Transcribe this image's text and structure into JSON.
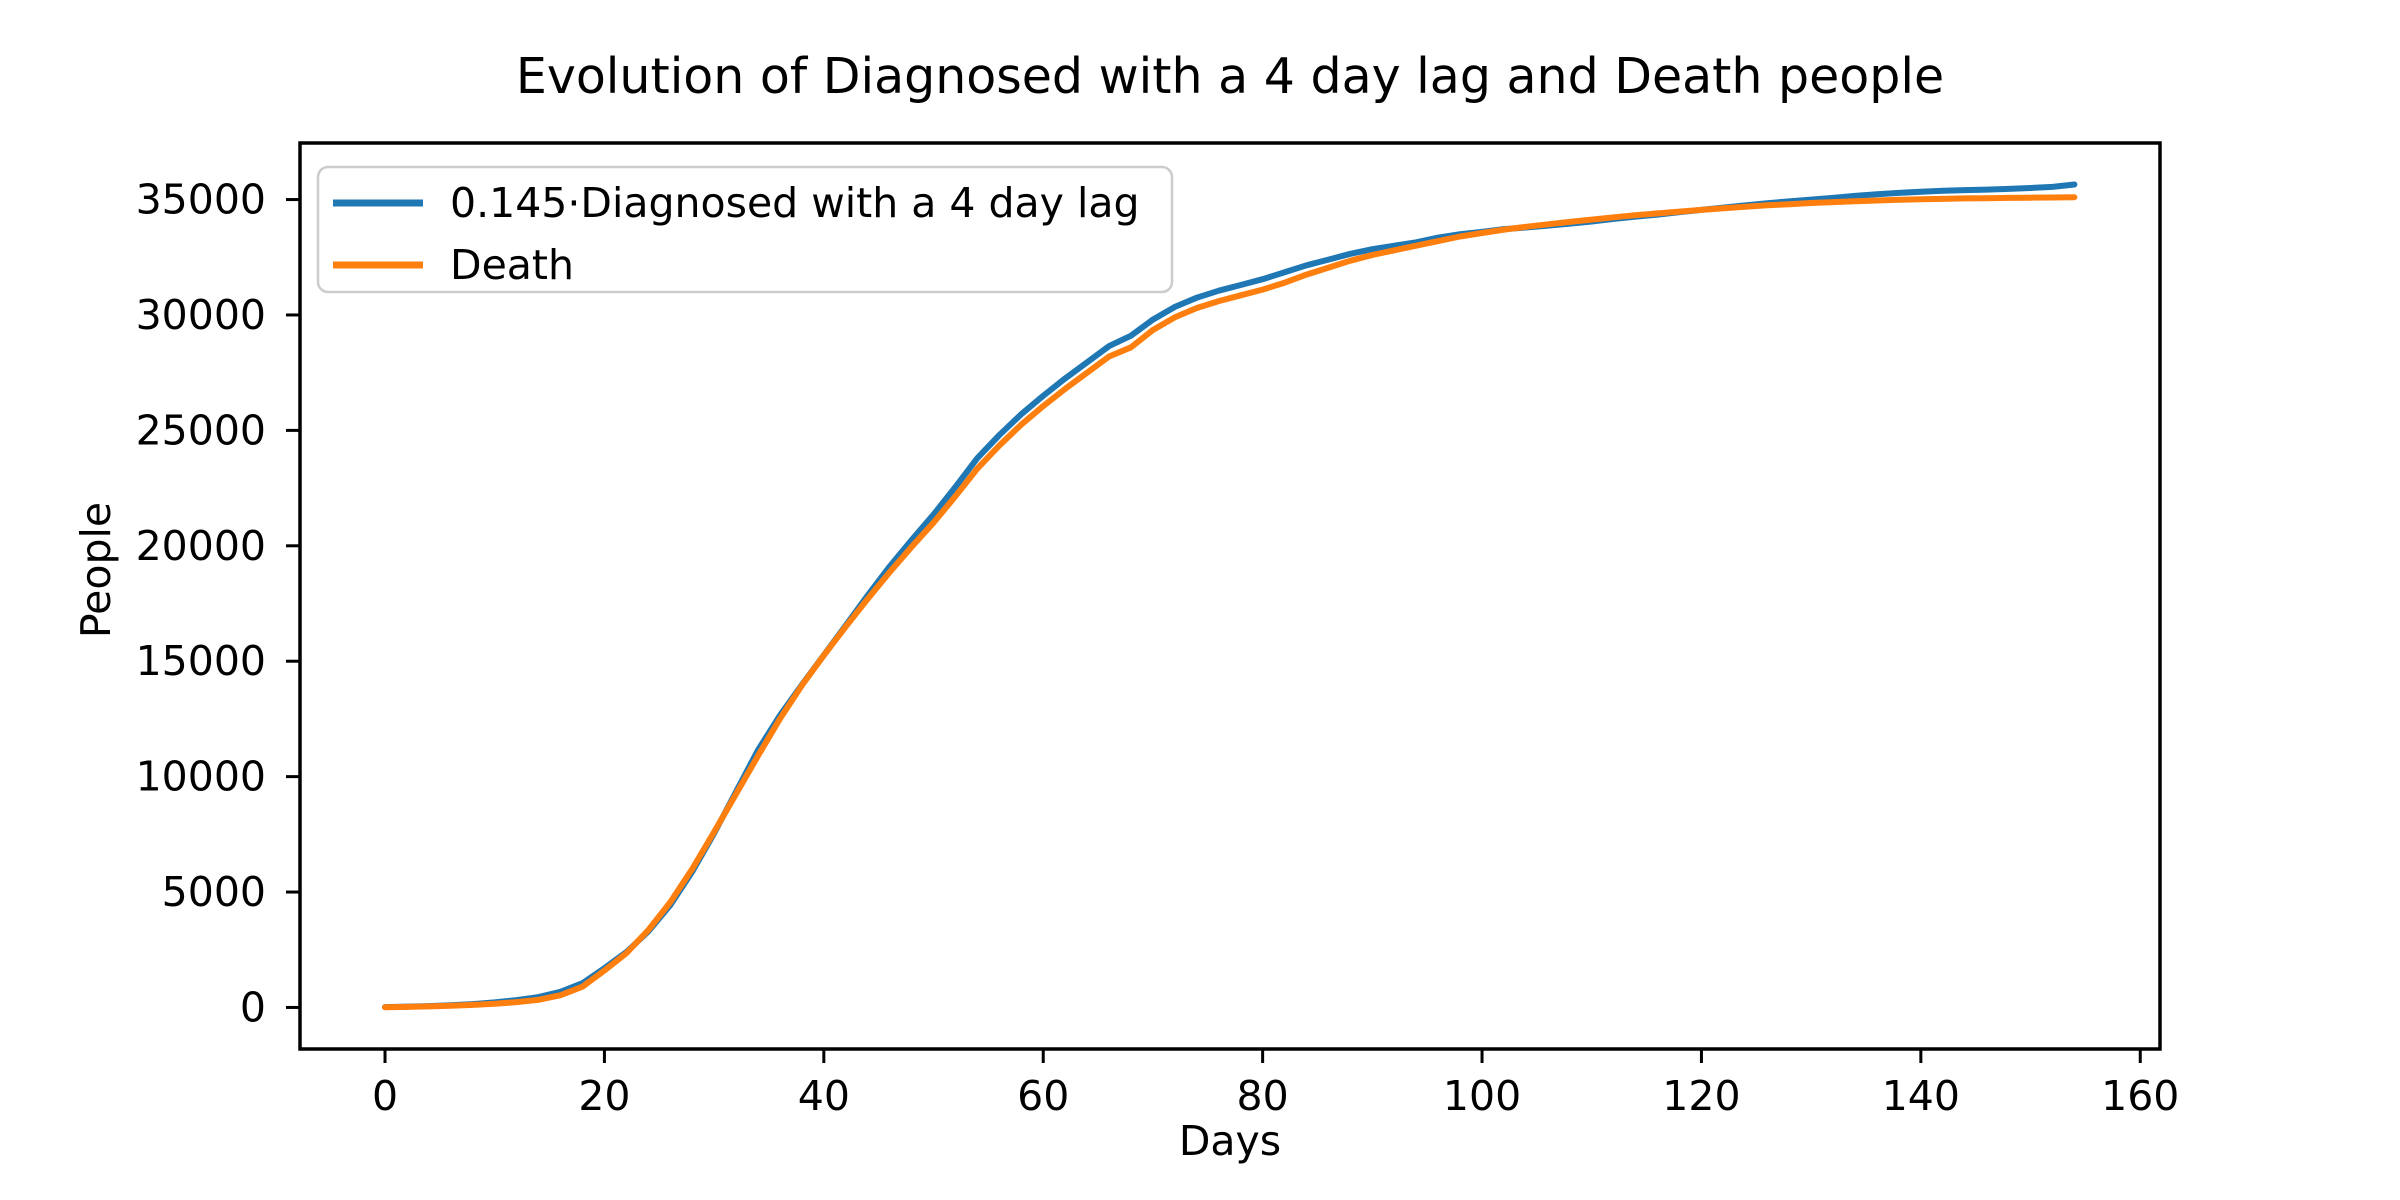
{
  "chart_data": {
    "type": "line",
    "title": "Evolution of Diagnosed with a 4 day lag and Death people",
    "xlabel": "Days",
    "ylabel": "People",
    "grid": false,
    "legend_position": "upper left",
    "xlim": [
      -7.75,
      161.8
    ],
    "ylim": [
      -1800,
      37450
    ],
    "xticks": [
      0,
      20,
      40,
      60,
      80,
      100,
      120,
      140,
      160
    ],
    "yticks": [
      0,
      5000,
      10000,
      15000,
      20000,
      25000,
      30000,
      35000
    ],
    "x": [
      0,
      2,
      4,
      6,
      8,
      10,
      12,
      14,
      16,
      18,
      20,
      22,
      24,
      26,
      28,
      30,
      32,
      34,
      36,
      38,
      40,
      42,
      44,
      46,
      48,
      50,
      52,
      54,
      56,
      58,
      60,
      62,
      64,
      66,
      68,
      70,
      72,
      74,
      76,
      78,
      80,
      82,
      84,
      86,
      88,
      90,
      92,
      94,
      96,
      98,
      100,
      102,
      104,
      106,
      108,
      110,
      112,
      114,
      116,
      118,
      120,
      122,
      124,
      126,
      128,
      130,
      132,
      134,
      136,
      138,
      140,
      142,
      144,
      146,
      148,
      150,
      152,
      154
    ],
    "series": [
      {
        "name": "0.145·Diagnosed with a 4 day lag",
        "color": "#1f77b4",
        "values": [
          15,
          35,
          60,
          95,
          145,
          220,
          320,
          450,
          680,
          1050,
          1700,
          2400,
          3290,
          4430,
          5880,
          7540,
          9350,
          11150,
          12650,
          13980,
          15260,
          16550,
          17850,
          19100,
          20250,
          21350,
          22550,
          23800,
          24800,
          25700,
          26500,
          27250,
          27950,
          28650,
          29100,
          29800,
          30350,
          30750,
          31050,
          31300,
          31550,
          31850,
          32150,
          32400,
          32650,
          32850,
          33000,
          33150,
          33350,
          33500,
          33600,
          33720,
          33790,
          33870,
          33960,
          34050,
          34160,
          34260,
          34350,
          34450,
          34550,
          34650,
          34750,
          34840,
          34920,
          35000,
          35070,
          35160,
          35230,
          35290,
          35340,
          35380,
          35410,
          35430,
          35460,
          35500,
          35550,
          35650
        ]
      },
      {
        "name": "Death",
        "color": "#ff7f0e",
        "values": [
          10,
          25,
          45,
          70,
          110,
          160,
          230,
          330,
          530,
          900,
          1600,
          2350,
          3350,
          4550,
          6000,
          7600,
          9250,
          10900,
          12500,
          13950,
          15250,
          16500,
          17700,
          18850,
          19950,
          21000,
          22150,
          23350,
          24350,
          25250,
          26050,
          26800,
          27500,
          28200,
          28600,
          29350,
          29900,
          30300,
          30600,
          30850,
          31100,
          31400,
          31750,
          32050,
          32350,
          32600,
          32800,
          33000,
          33200,
          33400,
          33550,
          33700,
          33820,
          33930,
          34030,
          34130,
          34230,
          34320,
          34400,
          34480,
          34550,
          34620,
          34690,
          34750,
          34800,
          34850,
          34890,
          34930,
          34960,
          34990,
          35010,
          35030,
          35050,
          35060,
          35070,
          35080,
          35090,
          35100
        ]
      }
    ]
  }
}
